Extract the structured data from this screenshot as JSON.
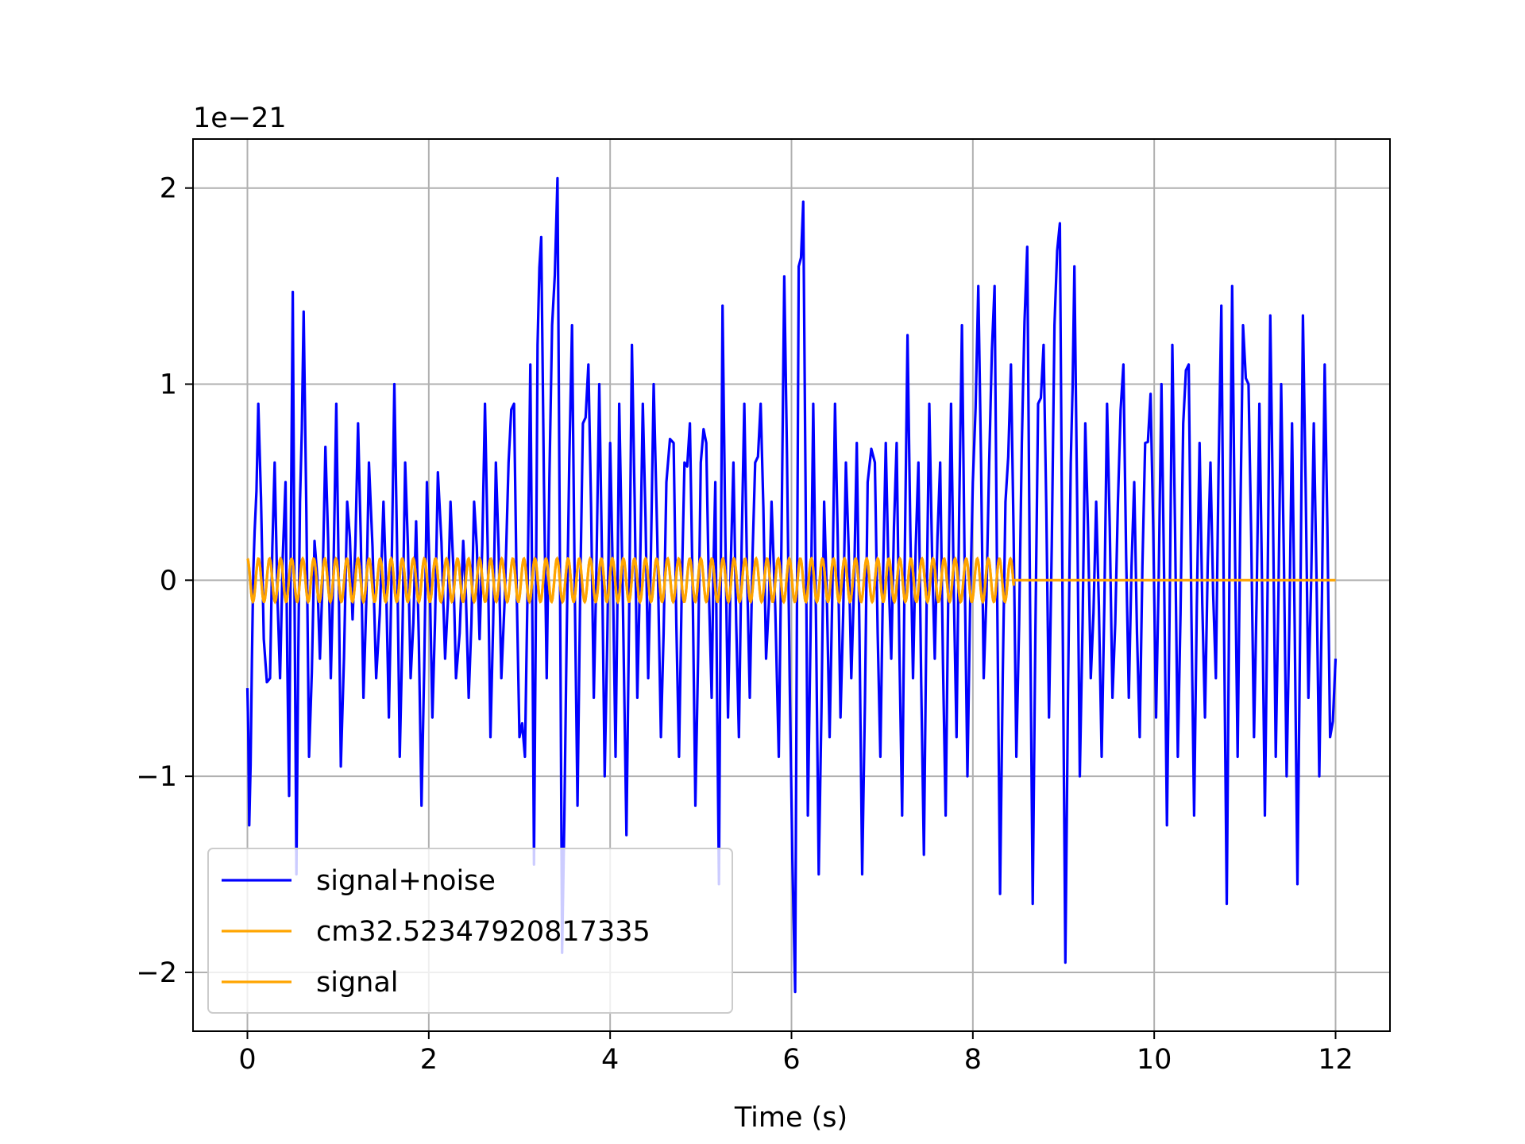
{
  "chart_data": {
    "type": "line",
    "title": "",
    "xlabel": "Time (s)",
    "ylabel": "",
    "y_offset_label": "1e−21",
    "xlim": [
      -0.6,
      12.6
    ],
    "ylim": [
      -2.3,
      2.25
    ],
    "xticks": [
      0,
      2,
      4,
      6,
      8,
      10,
      12
    ],
    "xtick_labels": [
      "0",
      "2",
      "4",
      "6",
      "8",
      "10",
      "12"
    ],
    "yticks": [
      2,
      1,
      0,
      -1,
      -2
    ],
    "ytick_labels": [
      "2",
      "1",
      "0",
      "−1",
      "−2"
    ],
    "grid": true,
    "legend_position": "lower-left",
    "series": [
      {
        "name": "signal+noise",
        "color": "#0000ff",
        "x_start": 0,
        "x_end": 12,
        "peaks": [
          [
            0.0,
            -0.55
          ],
          [
            0.02,
            -1.25
          ],
          [
            0.05,
            -0.4
          ],
          [
            0.08,
            0.25
          ],
          [
            0.12,
            0.9
          ],
          [
            0.18,
            -0.3
          ],
          [
            0.25,
            -0.5
          ],
          [
            0.3,
            0.6
          ],
          [
            0.36,
            -0.5
          ],
          [
            0.42,
            0.5
          ],
          [
            0.46,
            -1.1
          ],
          [
            0.5,
            1.47
          ],
          [
            0.54,
            -1.5
          ],
          [
            0.58,
            0.4
          ],
          [
            0.62,
            1.37
          ],
          [
            0.68,
            -0.9
          ],
          [
            0.74,
            0.2
          ],
          [
            0.8,
            -0.4
          ],
          [
            0.86,
            0.68
          ],
          [
            0.92,
            -0.5
          ],
          [
            0.98,
            0.9
          ],
          [
            1.03,
            -0.95
          ],
          [
            1.1,
            0.4
          ],
          [
            1.16,
            -0.2
          ],
          [
            1.22,
            0.8
          ],
          [
            1.28,
            -0.6
          ],
          [
            1.34,
            0.6
          ],
          [
            1.42,
            -0.5
          ],
          [
            1.5,
            0.4
          ],
          [
            1.56,
            -0.7
          ],
          [
            1.62,
            1.0
          ],
          [
            1.68,
            -0.9
          ],
          [
            1.74,
            0.6
          ],
          [
            1.8,
            -0.5
          ],
          [
            1.86,
            0.3
          ],
          [
            1.92,
            -1.15
          ],
          [
            1.98,
            0.5
          ],
          [
            2.04,
            -0.7
          ],
          [
            2.1,
            0.55
          ],
          [
            2.18,
            -0.4
          ],
          [
            2.24,
            0.4
          ],
          [
            2.3,
            -0.5
          ],
          [
            2.38,
            0.2
          ],
          [
            2.44,
            -0.6
          ],
          [
            2.5,
            0.4
          ],
          [
            2.56,
            -0.3
          ],
          [
            2.62,
            0.9
          ],
          [
            2.68,
            -0.8
          ],
          [
            2.74,
            0.6
          ],
          [
            2.8,
            -0.5
          ],
          [
            2.88,
            0.6
          ],
          [
            2.94,
            0.9
          ],
          [
            3.0,
            -0.8
          ],
          [
            3.06,
            -0.9
          ],
          [
            3.12,
            1.1
          ],
          [
            3.16,
            -1.45
          ],
          [
            3.2,
            1.2
          ],
          [
            3.24,
            1.75
          ],
          [
            3.3,
            -0.5
          ],
          [
            3.36,
            1.3
          ],
          [
            3.42,
            2.05
          ],
          [
            3.47,
            -1.9
          ],
          [
            3.52,
            -0.3
          ],
          [
            3.58,
            1.3
          ],
          [
            3.64,
            -1.15
          ],
          [
            3.7,
            0.8
          ],
          [
            3.76,
            1.1
          ],
          [
            3.82,
            -0.6
          ],
          [
            3.88,
            1.0
          ],
          [
            3.94,
            -1.0
          ],
          [
            4.0,
            0.7
          ],
          [
            4.06,
            -0.9
          ],
          [
            4.1,
            0.9
          ],
          [
            4.18,
            -1.3
          ],
          [
            4.24,
            1.2
          ],
          [
            4.3,
            -0.6
          ],
          [
            4.36,
            0.9
          ],
          [
            4.42,
            -0.5
          ],
          [
            4.48,
            1.0
          ],
          [
            4.56,
            -0.8
          ],
          [
            4.62,
            0.5
          ],
          [
            4.7,
            0.7
          ],
          [
            4.76,
            -0.9
          ],
          [
            4.82,
            0.6
          ],
          [
            4.88,
            0.8
          ],
          [
            4.94,
            -1.15
          ],
          [
            5.0,
            0.6
          ],
          [
            5.06,
            0.7
          ],
          [
            5.12,
            -0.6
          ],
          [
            5.16,
            0.5
          ],
          [
            5.2,
            -1.55
          ],
          [
            5.24,
            1.4
          ],
          [
            5.3,
            -0.7
          ],
          [
            5.36,
            0.6
          ],
          [
            5.42,
            -0.8
          ],
          [
            5.48,
            0.9
          ],
          [
            5.54,
            -0.6
          ],
          [
            5.6,
            0.6
          ],
          [
            5.66,
            0.9
          ],
          [
            5.72,
            -0.4
          ],
          [
            5.78,
            0.4
          ],
          [
            5.86,
            -0.9
          ],
          [
            5.92,
            1.55
          ],
          [
            5.98,
            -0.5
          ],
          [
            6.04,
            -2.1
          ],
          [
            6.08,
            1.6
          ],
          [
            6.13,
            1.93
          ],
          [
            6.18,
            -1.2
          ],
          [
            6.24,
            0.9
          ],
          [
            6.3,
            -1.5
          ],
          [
            6.36,
            0.4
          ],
          [
            6.42,
            -0.8
          ],
          [
            6.48,
            0.9
          ],
          [
            6.54,
            -0.7
          ],
          [
            6.6,
            0.6
          ],
          [
            6.66,
            -0.5
          ],
          [
            6.72,
            0.7
          ],
          [
            6.78,
            -1.5
          ],
          [
            6.84,
            0.5
          ],
          [
            6.92,
            0.6
          ],
          [
            6.98,
            -0.9
          ],
          [
            7.04,
            0.7
          ],
          [
            7.1,
            -0.4
          ],
          [
            7.16,
            0.7
          ],
          [
            7.22,
            -1.2
          ],
          [
            7.28,
            1.25
          ],
          [
            7.34,
            -0.5
          ],
          [
            7.4,
            0.6
          ],
          [
            7.46,
            -1.4
          ],
          [
            7.52,
            0.9
          ],
          [
            7.58,
            -0.4
          ],
          [
            7.64,
            0.6
          ],
          [
            7.7,
            -1.2
          ],
          [
            7.76,
            0.9
          ],
          [
            7.82,
            -0.8
          ],
          [
            7.88,
            1.3
          ],
          [
            7.94,
            -1.0
          ],
          [
            8.0,
            0.5
          ],
          [
            8.06,
            1.5
          ],
          [
            8.12,
            -0.5
          ],
          [
            8.18,
            0.6
          ],
          [
            8.24,
            1.5
          ],
          [
            8.3,
            -1.6
          ],
          [
            8.36,
            0.4
          ],
          [
            8.42,
            1.1
          ],
          [
            8.48,
            -0.9
          ],
          [
            8.54,
            0.7
          ],
          [
            8.6,
            1.7
          ],
          [
            8.66,
            -1.65
          ],
          [
            8.72,
            0.9
          ],
          [
            8.78,
            1.2
          ],
          [
            8.84,
            -0.7
          ],
          [
            8.9,
            1.3
          ],
          [
            8.96,
            1.82
          ],
          [
            9.02,
            -1.95
          ],
          [
            9.08,
            0.6
          ],
          [
            9.12,
            1.6
          ],
          [
            9.18,
            -1.0
          ],
          [
            9.24,
            0.8
          ],
          [
            9.3,
            -0.5
          ],
          [
            9.36,
            0.4
          ],
          [
            9.42,
            -0.9
          ],
          [
            9.48,
            0.9
          ],
          [
            9.54,
            -0.6
          ],
          [
            9.6,
            0.4
          ],
          [
            9.66,
            1.1
          ],
          [
            9.72,
            -0.6
          ],
          [
            9.78,
            0.5
          ],
          [
            9.84,
            -0.8
          ],
          [
            9.9,
            0.7
          ],
          [
            9.96,
            0.95
          ],
          [
            10.02,
            -0.7
          ],
          [
            10.08,
            1.0
          ],
          [
            10.14,
            -1.25
          ],
          [
            10.2,
            1.2
          ],
          [
            10.26,
            -0.9
          ],
          [
            10.32,
            0.8
          ],
          [
            10.38,
            1.1
          ],
          [
            10.44,
            -1.2
          ],
          [
            10.5,
            0.7
          ],
          [
            10.56,
            -0.7
          ],
          [
            10.62,
            0.6
          ],
          [
            10.68,
            -0.5
          ],
          [
            10.74,
            1.4
          ],
          [
            10.8,
            -1.65
          ],
          [
            10.86,
            1.5
          ],
          [
            10.92,
            -0.9
          ],
          [
            10.98,
            1.3
          ],
          [
            11.04,
            1.0
          ],
          [
            11.1,
            -0.8
          ],
          [
            11.16,
            0.9
          ],
          [
            11.22,
            -1.2
          ],
          [
            11.28,
            1.35
          ],
          [
            11.34,
            -0.9
          ],
          [
            11.4,
            1.0
          ],
          [
            11.46,
            -1.0
          ],
          [
            11.52,
            0.8
          ],
          [
            11.58,
            -1.55
          ],
          [
            11.64,
            1.35
          ],
          [
            11.7,
            -0.6
          ],
          [
            11.76,
            0.8
          ],
          [
            11.82,
            -1.0
          ],
          [
            11.88,
            1.1
          ],
          [
            11.94,
            -0.8
          ],
          [
            12.0,
            -0.4
          ]
        ]
      },
      {
        "name": "cm32.52347920817335",
        "color": "#ffa500",
        "amplitude": 0.11,
        "frequency_hz": 8.2,
        "x_start": 0,
        "x_end": 8.45
      },
      {
        "name": "signal",
        "color": "#ffa500",
        "x_start": 0,
        "x_end": 12,
        "oscillation_amplitude": 0.11,
        "oscillation_frequency_hz": 8.2,
        "oscillation_end": 8.45,
        "value_after_end": 0
      }
    ]
  }
}
